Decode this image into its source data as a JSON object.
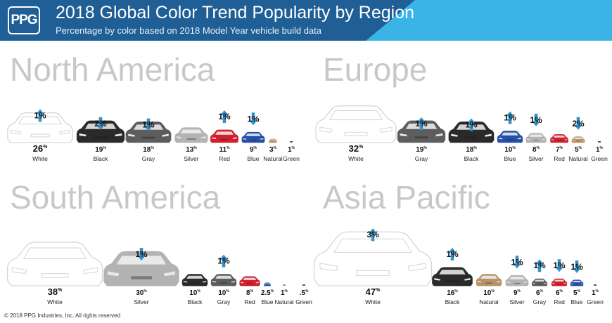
{
  "header": {
    "logo_text": "PPG",
    "title": "2018 Global Color Trend Popularity by Region",
    "subtitle": "Percentage by color based on 2018 Model Year vehicle build data"
  },
  "footer": {
    "copyright": "© 2018 PPG Industries, Inc. All rights reserved"
  },
  "colors": {
    "header_blue": "#1f5f96",
    "header_accent": "#3ab4e6",
    "arrow": "#2f95cf",
    "White": "#ffffff",
    "Black": "#2a2a2a",
    "Gray": "#5d5d5d",
    "Silver": "#b3b3b3",
    "Red": "#d0202b",
    "Blue": "#2650a8",
    "Natural": "#b8936a",
    "Green": "#1f7a3c"
  },
  "chart_data": [
    {
      "type": "bar",
      "title": "North America",
      "categories": [
        "White",
        "Black",
        "Gray",
        "Silver",
        "Red",
        "Blue",
        "Natural",
        "Green"
      ],
      "values": [
        26,
        19,
        18,
        13,
        11,
        9,
        3,
        1
      ],
      "value_labels": [
        "26",
        "19",
        "18",
        "13",
        "11",
        "9",
        "3",
        "1"
      ],
      "unit": "%",
      "trend": [
        "up",
        "down",
        "down",
        "",
        "up",
        "down",
        "",
        ""
      ],
      "trend_labels": [
        "1%",
        "2%",
        "1%",
        "",
        "1%",
        "1%",
        "",
        ""
      ]
    },
    {
      "type": "bar",
      "title": "Europe",
      "categories": [
        "White",
        "Gray",
        "Black",
        "Blue",
        "Silver",
        "Red",
        "Natural",
        "Green"
      ],
      "values": [
        32,
        19,
        18,
        10,
        8,
        7,
        5,
        1
      ],
      "value_labels": [
        "32",
        "19",
        "18",
        "10",
        "8",
        "7",
        "5",
        "1"
      ],
      "unit": "%",
      "trend": [
        "",
        "up",
        "up",
        "up",
        "down",
        "",
        "down",
        ""
      ],
      "trend_labels": [
        "",
        "1%",
        "1%",
        "1%",
        "1%",
        "",
        "2%",
        ""
      ]
    },
    {
      "type": "bar",
      "title": "South America",
      "categories": [
        "White",
        "Silver",
        "Black",
        "Gray",
        "Red",
        "Blue",
        "Natural",
        "Green"
      ],
      "values": [
        38,
        30,
        10,
        10,
        8,
        2.5,
        1,
        0.5
      ],
      "value_labels": [
        "38",
        "30",
        "10",
        "10",
        "8",
        "2.5",
        "1",
        ".5"
      ],
      "unit": "%",
      "trend": [
        "",
        "down",
        "",
        "up",
        "",
        "",
        "",
        ""
      ],
      "trend_labels": [
        "",
        "1%",
        "",
        "1%",
        "",
        "",
        "",
        ""
      ]
    },
    {
      "type": "bar",
      "title": "Asia Pacific",
      "categories": [
        "White",
        "Black",
        "Natural",
        "Silver",
        "Gray",
        "Red",
        "Blue",
        "Green"
      ],
      "values": [
        47,
        16,
        10,
        9,
        6,
        6,
        5,
        1
      ],
      "value_labels": [
        "47",
        "16",
        "10",
        "9",
        "6",
        "6",
        "5",
        "1"
      ],
      "unit": "%",
      "trend": [
        "up",
        "up",
        "",
        "down",
        "up",
        "down",
        "down",
        ""
      ],
      "trend_labels": [
        "3%",
        "1%",
        "",
        "1%",
        "1%",
        "1%",
        "1%",
        ""
      ]
    }
  ]
}
